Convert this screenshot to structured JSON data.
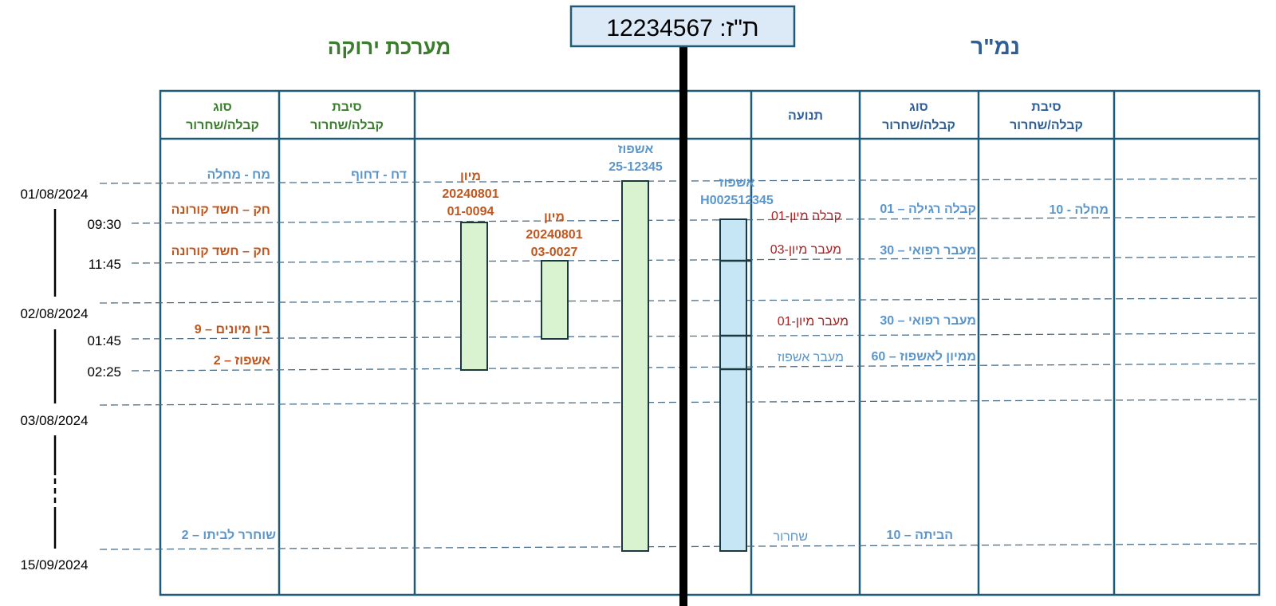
{
  "id_box": {
    "text": "ת\"ז: 12234567"
  },
  "sections": {
    "green_system": "מערכת ירוקה",
    "namar": "נמ\"ר"
  },
  "colors": {
    "green_title": "#3a7d2c",
    "blue_title": "#2f5f99",
    "frame": "#1f5a78",
    "orange": "#c0561e",
    "blue_text": "#5a96cc",
    "red_text": "#b02020",
    "green_fill": "#d9f3d0",
    "blue_fill": "#c6e6f5",
    "id_fill": "#dce9f7"
  },
  "headers": {
    "green_type_line1": "סוג",
    "green_type_line2": "קבלה/שחרור",
    "green_reason_line1": "סיבת",
    "green_reason_line2": "קבלה/שחרור",
    "movement": "תנועה",
    "blue_type_line1": "סוג",
    "blue_type_line2": "קבלה/שחרור",
    "blue_reason_line1": "סיבת",
    "blue_reason_line2": "קבלה/שחרור"
  },
  "dates": {
    "d1": "01/08/2024",
    "d2": "02/08/2024",
    "d3": "03/08/2024",
    "d4": "15/09/2024"
  },
  "times": {
    "t1": "09:30",
    "t2": "11:45",
    "t3": "01:45",
    "t4": "02:25"
  },
  "green_type": {
    "r1": "מח - מחלה",
    "r2": "חק – חשד קורונה",
    "r3": "חק – חשד קורונה",
    "r4": "9 – בין מיונים",
    "r5": "2 – אשפוז",
    "r6": "2 – שוחרר לביתו"
  },
  "green_reason": {
    "r1": "דח - דחוף"
  },
  "bars": {
    "triage1": {
      "line1": "מיון",
      "line2": "20240801",
      "line3": "01-0094"
    },
    "triage2": {
      "line1": "מיון",
      "line2": "20240801",
      "line3": "03-0027"
    },
    "hosp_green": {
      "line1": "אשפוז",
      "line2": "25-12345"
    },
    "hosp_blue": {
      "line1": "אשפוז",
      "line2": "H002512345"
    }
  },
  "movements": {
    "m1": "קבלה מיון-01",
    "m2": "מעבר מיון-03",
    "m3": "מעבר מיון-01",
    "m4": "מעבר אשפוז",
    "m5": "שחרור"
  },
  "blue_type": {
    "r1": "01 – קבלה רגילה",
    "r2": "30 – מעבר רפואי",
    "r3": "30 – מעבר רפואי",
    "r4": "60 – ממיון לאשפוז",
    "r5": "10 – הביתה"
  },
  "blue_reason": {
    "r1": "10 - מחלה"
  }
}
